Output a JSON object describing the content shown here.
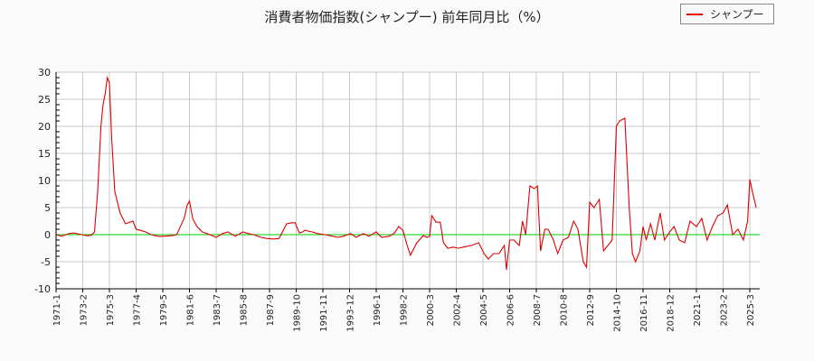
{
  "title": "消費者物価指数(シャンプー) 前年同月比（%）",
  "legend": {
    "label": "シャンプー",
    "color": "#e00000"
  },
  "colors": {
    "series": "#e00000",
    "zero_line": "#00cc00",
    "grid": "#c8c8c8",
    "plot_bg": "#ffffff",
    "page_bg": "#fafafa"
  },
  "chart_data": {
    "type": "line",
    "title": "消費者物価指数(シャンプー) 前年同月比（%）",
    "xlabel": "",
    "ylabel": "",
    "ylim": [
      -10,
      30
    ],
    "yticks": [
      -10,
      -5,
      0,
      5,
      10,
      15,
      20,
      25,
      30
    ],
    "xticks": [
      "1971-1",
      "1973-2",
      "1975-3",
      "1977-4",
      "1979-5",
      "1981-6",
      "1983-7",
      "1985-8",
      "1987-9",
      "1989-10",
      "1991-11",
      "1993-12",
      "1996-1",
      "1998-2",
      "2000-3",
      "2002-4",
      "2004-5",
      "2006-6",
      "2008-7",
      "2010-8",
      "2012-9",
      "2014-10",
      "2016-11",
      "2018-12",
      "2021-1",
      "2023-2",
      "2025-3"
    ],
    "grid": true,
    "legend_position": "top-right",
    "series": [
      {
        "name": "シャンプー",
        "x": [
          "1971-1",
          "1971-6",
          "1972-1",
          "1972-6",
          "1973-1",
          "1973-6",
          "1973-10",
          "1974-1",
          "1974-4",
          "1974-7",
          "1974-9",
          "1974-11",
          "1975-1",
          "1975-3",
          "1975-5",
          "1975-8",
          "1976-1",
          "1976-6",
          "1977-1",
          "1977-4",
          "1977-8",
          "1978-1",
          "1978-6",
          "1979-1",
          "1979-6",
          "1980-1",
          "1980-6",
          "1981-1",
          "1981-4",
          "1981-6",
          "1981-9",
          "1982-1",
          "1982-6",
          "1983-1",
          "1983-7",
          "1984-1",
          "1984-6",
          "1985-1",
          "1985-8",
          "1986-1",
          "1986-6",
          "1987-1",
          "1987-6",
          "1988-1",
          "1988-6",
          "1989-1",
          "1989-6",
          "1989-9",
          "1990-1",
          "1990-4",
          "1990-6",
          "1991-1",
          "1991-6",
          "1992-1",
          "1992-6",
          "1993-1",
          "1993-6",
          "1994-1",
          "1994-6",
          "1995-1",
          "1995-6",
          "1996-1",
          "1996-6",
          "1997-1",
          "1997-6",
          "1997-10",
          "1998-2",
          "1998-6",
          "1998-9",
          "1999-3",
          "1999-9",
          "2000-1",
          "2000-3",
          "2000-5",
          "2000-9",
          "2001-1",
          "2001-4",
          "2001-8",
          "2002-1",
          "2002-6",
          "2003-1",
          "2003-6",
          "2004-1",
          "2004-6",
          "2004-10",
          "2005-3",
          "2005-8",
          "2006-1",
          "2006-3",
          "2006-6",
          "2006-10",
          "2007-3",
          "2007-6",
          "2007-9",
          "2008-1",
          "2008-5",
          "2008-8",
          "2008-11",
          "2009-3",
          "2009-6",
          "2009-11",
          "2010-3",
          "2010-8",
          "2011-1",
          "2011-6",
          "2011-10",
          "2012-3",
          "2012-6",
          "2012-9",
          "2013-1",
          "2013-6",
          "2013-10",
          "2014-2",
          "2014-6",
          "2014-10",
          "2015-1",
          "2015-3",
          "2015-6",
          "2015-10",
          "2016-1",
          "2016-4",
          "2016-8",
          "2016-11",
          "2017-2",
          "2017-6",
          "2017-10",
          "2018-3",
          "2018-7",
          "2018-12",
          "2019-4",
          "2019-9",
          "2020-2",
          "2020-7",
          "2021-1",
          "2021-6",
          "2021-11",
          "2022-4",
          "2022-9",
          "2023-2",
          "2023-6",
          "2023-11",
          "2024-4",
          "2024-9",
          "2025-1",
          "2025-3",
          "2025-6",
          "2025-9"
        ],
        "values": [
          0,
          -0.3,
          0.2,
          0.3,
          0,
          -0.2,
          -0.1,
          0.5,
          8,
          20,
          24,
          26,
          29,
          28,
          18,
          8,
          4,
          2,
          2.5,
          1,
          0.8,
          0.5,
          0,
          -0.3,
          -0.3,
          -0.2,
          0,
          3,
          5.5,
          6.2,
          3,
          1.5,
          0.5,
          0,
          -0.5,
          0.2,
          0.5,
          -0.3,
          0.5,
          0.2,
          0,
          -0.5,
          -0.7,
          -0.8,
          -0.7,
          2,
          2.2,
          2.2,
          0.3,
          0.5,
          0.8,
          0.5,
          0.2,
          0,
          -0.2,
          -0.5,
          -0.3,
          0.2,
          -0.5,
          0.2,
          -0.3,
          0.5,
          -0.5,
          -0.3,
          0.3,
          1.5,
          0.8,
          -2,
          -3.8,
          -1.5,
          -0.2,
          -0.5,
          -0.3,
          3.5,
          2.3,
          2.3,
          -1.5,
          -2.5,
          -2.3,
          -2.5,
          -2.2,
          -2,
          -1.5,
          -3.5,
          -4.5,
          -3.5,
          -3.5,
          -2,
          -6.5,
          -1,
          -1,
          -2,
          2.5,
          0,
          9,
          8.5,
          9,
          -3,
          1,
          1,
          -1,
          -3.5,
          -1,
          -0.5,
          2.5,
          1,
          -5,
          -6,
          6,
          5,
          6.5,
          -3,
          -2,
          -1,
          20,
          21,
          21.2,
          21.5,
          5,
          -3.5,
          -5,
          -3,
          1.5,
          -1,
          2,
          -1,
          4,
          -1,
          0.5,
          1.5,
          -1,
          -1.5,
          2.5,
          1.5,
          3,
          -1,
          1.5,
          3.5,
          4,
          5.5,
          0,
          1,
          -1,
          2.5,
          10.2,
          7.5,
          5
        ]
      }
    ]
  }
}
